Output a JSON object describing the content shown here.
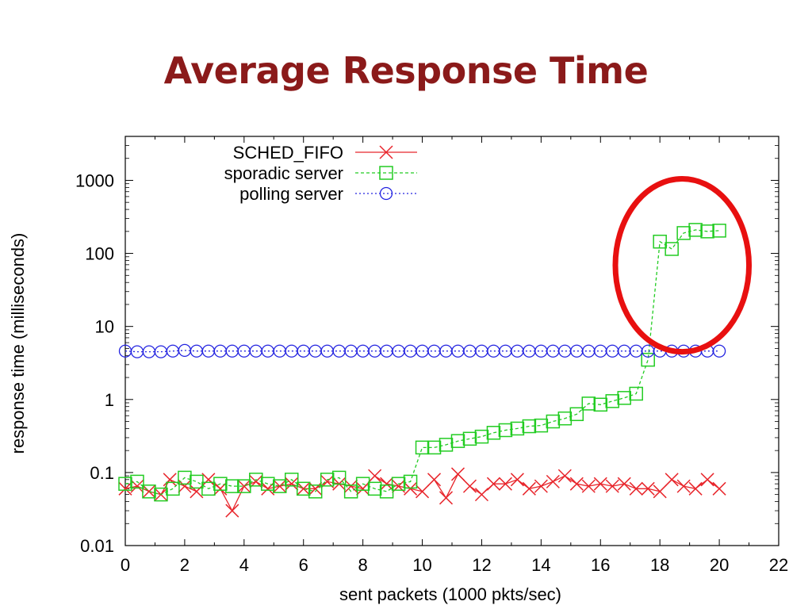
{
  "slide": {
    "title": "Average Response Time"
  },
  "chart_data": {
    "type": "line",
    "title": "",
    "xlabel": "sent packets (1000 pkts/sec)",
    "ylabel": "response time (milliseconds)",
    "xlim": [
      0,
      22
    ],
    "ylim": [
      0.01,
      4000
    ],
    "yscale": "log",
    "grid": false,
    "legend_position": "top-left",
    "x_ticks": [
      0,
      2,
      4,
      6,
      8,
      10,
      12,
      14,
      16,
      18,
      20,
      22
    ],
    "x_tick_labels": [
      "0",
      "2",
      "4",
      "6",
      "8",
      "10",
      "12",
      "14",
      "16",
      "18",
      "20",
      "22"
    ],
    "y_ticks": [
      0.01,
      0.1,
      1,
      10,
      100,
      1000
    ],
    "y_tick_labels": [
      "0.01",
      "0.1",
      "1",
      "10",
      "100",
      "1000"
    ],
    "series": [
      {
        "name": "SCHED_FIFO",
        "color": "#e8262c",
        "marker": "cross",
        "dash": "solid",
        "points": [
          [
            0,
            0.06
          ],
          [
            0.4,
            0.065
          ],
          [
            0.8,
            0.055
          ],
          [
            1.2,
            0.05
          ],
          [
            1.5,
            0.08
          ],
          [
            2,
            0.065
          ],
          [
            2.4,
            0.055
          ],
          [
            2.8,
            0.08
          ],
          [
            3.2,
            0.06
          ],
          [
            3.6,
            0.03
          ],
          [
            4,
            0.065
          ],
          [
            4.4,
            0.075
          ],
          [
            4.8,
            0.06
          ],
          [
            5.2,
            0.065
          ],
          [
            5.6,
            0.07
          ],
          [
            6,
            0.06
          ],
          [
            6.4,
            0.06
          ],
          [
            6.8,
            0.075
          ],
          [
            7.2,
            0.07
          ],
          [
            7.6,
            0.065
          ],
          [
            8,
            0.06
          ],
          [
            8.4,
            0.09
          ],
          [
            8.8,
            0.07
          ],
          [
            9.2,
            0.065
          ],
          [
            9.6,
            0.06
          ],
          [
            10,
            0.055
          ],
          [
            10.4,
            0.08
          ],
          [
            10.8,
            0.045
          ],
          [
            11.2,
            0.095
          ],
          [
            11.6,
            0.065
          ],
          [
            12,
            0.05
          ],
          [
            12.4,
            0.07
          ],
          [
            12.8,
            0.07
          ],
          [
            13.2,
            0.08
          ],
          [
            13.6,
            0.06
          ],
          [
            14,
            0.065
          ],
          [
            14.4,
            0.075
          ],
          [
            14.8,
            0.09
          ],
          [
            15.2,
            0.07
          ],
          [
            15.6,
            0.065
          ],
          [
            16,
            0.07
          ],
          [
            16.4,
            0.065
          ],
          [
            16.8,
            0.07
          ],
          [
            17.2,
            0.06
          ],
          [
            17.6,
            0.06
          ],
          [
            18,
            0.055
          ],
          [
            18.4,
            0.08
          ],
          [
            18.8,
            0.065
          ],
          [
            19.2,
            0.06
          ],
          [
            19.6,
            0.08
          ],
          [
            20,
            0.06
          ]
        ]
      },
      {
        "name": "sporadic server",
        "color": "#22cc22",
        "marker": "square",
        "dash": "4,3",
        "points": [
          [
            0,
            0.07
          ],
          [
            0.4,
            0.075
          ],
          [
            0.8,
            0.055
          ],
          [
            1.2,
            0.05
          ],
          [
            1.6,
            0.06
          ],
          [
            2,
            0.085
          ],
          [
            2.4,
            0.075
          ],
          [
            2.8,
            0.06
          ],
          [
            3.2,
            0.07
          ],
          [
            3.6,
            0.065
          ],
          [
            4,
            0.065
          ],
          [
            4.4,
            0.08
          ],
          [
            4.8,
            0.07
          ],
          [
            5.2,
            0.065
          ],
          [
            5.6,
            0.08
          ],
          [
            6,
            0.06
          ],
          [
            6.4,
            0.055
          ],
          [
            6.8,
            0.08
          ],
          [
            7.2,
            0.085
          ],
          [
            7.6,
            0.055
          ],
          [
            8,
            0.07
          ],
          [
            8.4,
            0.06
          ],
          [
            8.8,
            0.055
          ],
          [
            9.2,
            0.07
          ],
          [
            9.6,
            0.075
          ],
          [
            10,
            0.22
          ],
          [
            10.4,
            0.22
          ],
          [
            10.8,
            0.24
          ],
          [
            11.2,
            0.27
          ],
          [
            11.6,
            0.29
          ],
          [
            12,
            0.31
          ],
          [
            12.4,
            0.35
          ],
          [
            12.8,
            0.38
          ],
          [
            13.2,
            0.4
          ],
          [
            13.6,
            0.43
          ],
          [
            14,
            0.44
          ],
          [
            14.4,
            0.5
          ],
          [
            14.8,
            0.55
          ],
          [
            15.2,
            0.63
          ],
          [
            15.6,
            0.88
          ],
          [
            16,
            0.85
          ],
          [
            16.4,
            0.95
          ],
          [
            16.8,
            1.05
          ],
          [
            17.2,
            1.2
          ],
          [
            17.6,
            3.5
          ],
          [
            18,
            145
          ],
          [
            18.4,
            115
          ],
          [
            18.8,
            190
          ],
          [
            19.2,
            210
          ],
          [
            19.6,
            200
          ],
          [
            20,
            205
          ]
        ]
      },
      {
        "name": "polling server",
        "color": "#2323e0",
        "marker": "circle",
        "dash": "2,3",
        "points": [
          [
            0,
            4.6
          ],
          [
            0.4,
            4.5
          ],
          [
            0.8,
            4.5
          ],
          [
            1.2,
            4.5
          ],
          [
            1.6,
            4.6
          ],
          [
            2,
            4.7
          ],
          [
            2.4,
            4.6
          ],
          [
            2.8,
            4.6
          ],
          [
            3.2,
            4.6
          ],
          [
            3.6,
            4.6
          ],
          [
            4,
            4.6
          ],
          [
            4.4,
            4.6
          ],
          [
            4.8,
            4.6
          ],
          [
            5.2,
            4.6
          ],
          [
            5.6,
            4.6
          ],
          [
            6,
            4.6
          ],
          [
            6.4,
            4.6
          ],
          [
            6.8,
            4.6
          ],
          [
            7.2,
            4.6
          ],
          [
            7.6,
            4.6
          ],
          [
            8,
            4.6
          ],
          [
            8.4,
            4.6
          ],
          [
            8.8,
            4.6
          ],
          [
            9.2,
            4.6
          ],
          [
            9.6,
            4.6
          ],
          [
            10,
            4.6
          ],
          [
            10.4,
            4.6
          ],
          [
            10.8,
            4.6
          ],
          [
            11.2,
            4.6
          ],
          [
            11.6,
            4.6
          ],
          [
            12,
            4.6
          ],
          [
            12.4,
            4.6
          ],
          [
            12.8,
            4.6
          ],
          [
            13.2,
            4.6
          ],
          [
            13.6,
            4.6
          ],
          [
            14,
            4.6
          ],
          [
            14.4,
            4.6
          ],
          [
            14.8,
            4.6
          ],
          [
            15.2,
            4.6
          ],
          [
            15.6,
            4.6
          ],
          [
            16,
            4.6
          ],
          [
            16.4,
            4.6
          ],
          [
            16.8,
            4.6
          ],
          [
            17.2,
            4.6
          ],
          [
            17.6,
            4.6
          ],
          [
            18,
            4.6
          ],
          [
            18.4,
            4.6
          ],
          [
            18.8,
            4.6
          ],
          [
            19.2,
            4.6
          ],
          [
            19.6,
            4.6
          ],
          [
            20,
            4.6
          ]
        ]
      }
    ],
    "highlight": {
      "shape": "ellipse",
      "color": "#e81010",
      "x_range": [
        16.5,
        21.0
      ],
      "y_range": [
        4.5,
        1050
      ]
    }
  }
}
